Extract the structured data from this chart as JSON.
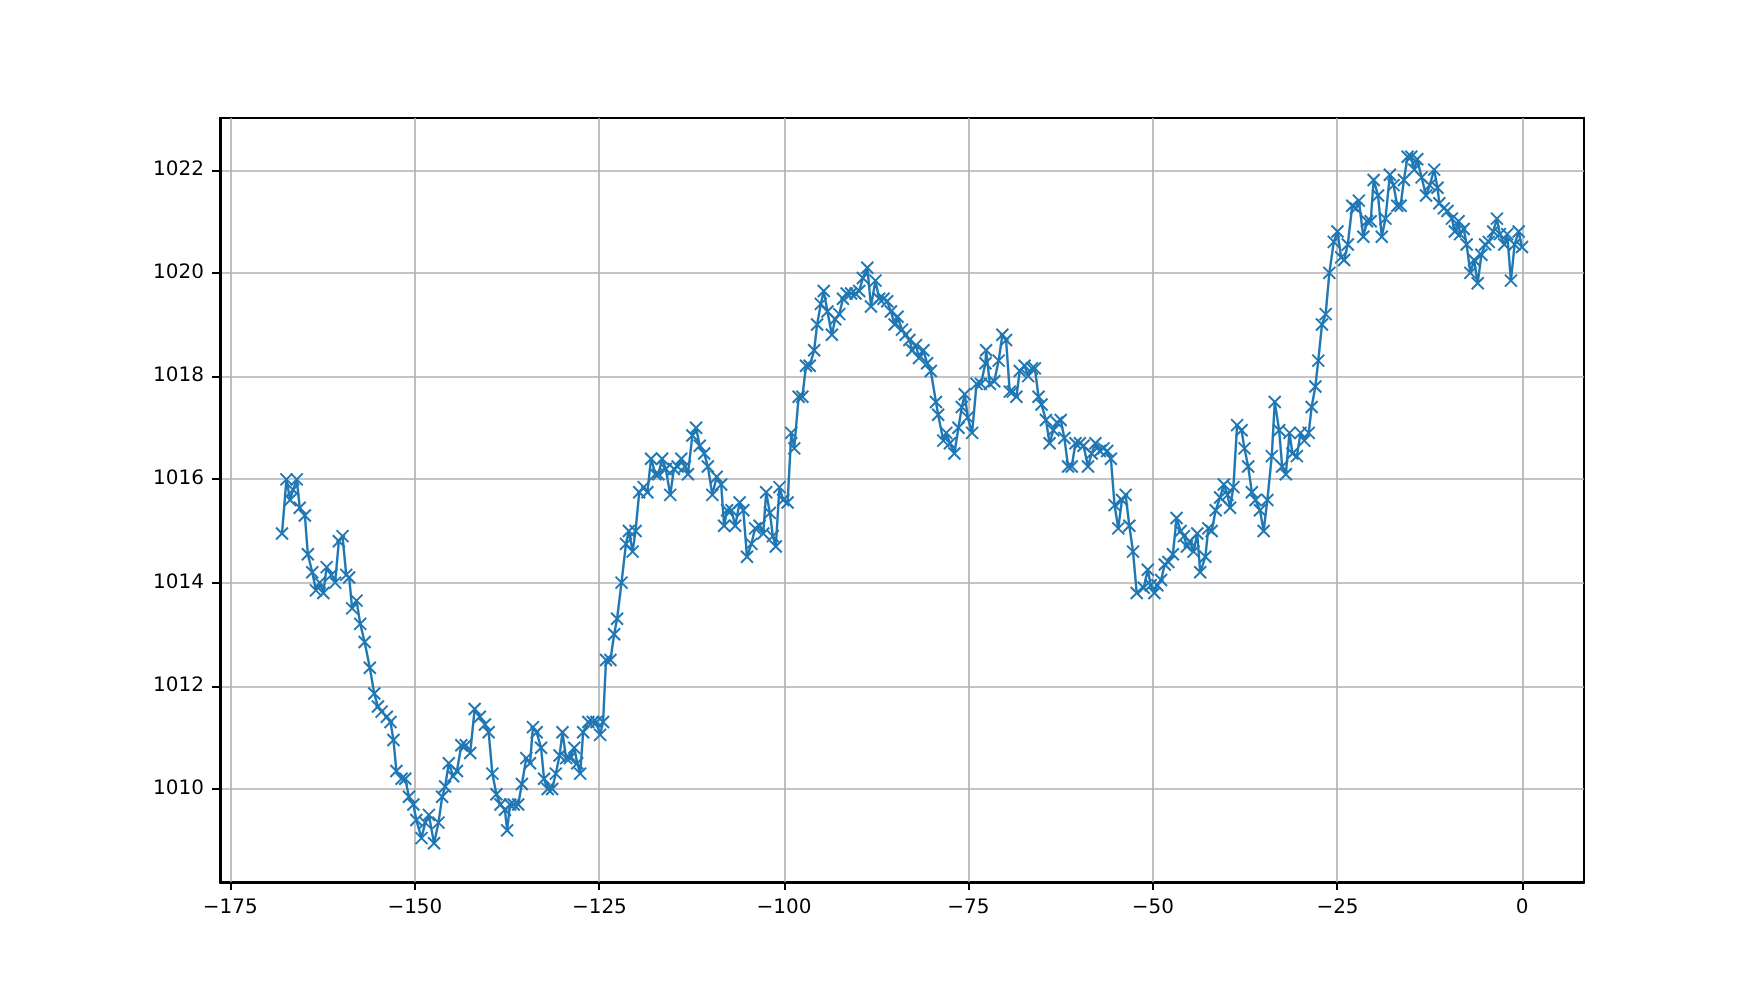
{
  "chart_data": {
    "type": "line",
    "grid": true,
    "marker": "cross",
    "line_style": "solid",
    "xlim": [
      -176.4,
      8.4
    ],
    "ylim": [
      1008.2,
      1023.0
    ],
    "xticks": [
      {
        "value": -175,
        "label": "−175"
      },
      {
        "value": -150,
        "label": "−150"
      },
      {
        "value": -125,
        "label": "−125"
      },
      {
        "value": -100,
        "label": "−100"
      },
      {
        "value": -75,
        "label": "−75"
      },
      {
        "value": -50,
        "label": "−50"
      },
      {
        "value": -25,
        "label": "−25"
      },
      0
    ],
    "yticks": [
      1010,
      1012,
      1014,
      1016,
      1018,
      1020,
      1022
    ],
    "series": [
      {
        "color": "#1f77b4",
        "x": [
          -168,
          -167.4,
          -166.9,
          -166.5,
          -166.0,
          -165.6,
          -164.9,
          -164.5,
          -163.9,
          -163.4,
          -162.9,
          -162.4,
          -161.95,
          -161.3,
          -160.8,
          -160.3,
          -159.8,
          -159.3,
          -158.9,
          -158.5,
          -157.9,
          -157.4,
          -156.8,
          -156.1,
          -155.5,
          -155.0,
          -154.5,
          -153.8,
          -153.3,
          -152.9,
          -152.5,
          -151.8,
          -151.3,
          -150.8,
          -150.2,
          -149.8,
          -149.1,
          -148.6,
          -148.1,
          -147.4,
          -146.8,
          -146.3,
          -145.9,
          -145.4,
          -144.8,
          -144.3,
          -143.7,
          -143.1,
          -142.5,
          -141.9,
          -141.2,
          -140.5,
          -140.0,
          -139.5,
          -138.95,
          -138.4,
          -137.8,
          -137.5,
          -137.1,
          -136.6,
          -136.0,
          -135.5,
          -134.9,
          -134.4,
          -134.0,
          -133.5,
          -132.9,
          -132.5,
          -132.0,
          -131.4,
          -130.9,
          -130.4,
          -130.0,
          -129.5,
          -129.0,
          -128.4,
          -128.0,
          -127.6,
          -127.2,
          -126.5,
          -125.9,
          -125.4,
          -124.9,
          -124.5,
          -124.1,
          -123.5,
          -123.0,
          -122.6,
          -122.0,
          -121.4,
          -121.0,
          -120.5,
          -120.1,
          -119.6,
          -119.0,
          -118.5,
          -118.0,
          -117.4,
          -117.0,
          -116.5,
          -116.0,
          -115.4,
          -114.9,
          -114.4,
          -113.9,
          -113.4,
          -113.0,
          -112.4,
          -111.9,
          -111.4,
          -110.8,
          -110.3,
          -109.7,
          -109.1,
          -108.5,
          -108.1,
          -107.7,
          -107.1,
          -106.6,
          -106.0,
          -105.5,
          -105.0,
          -104.4,
          -103.9,
          -103.3,
          -102.8,
          -102.4,
          -101.9,
          -101.5,
          -101.1,
          -100.6,
          -100.1,
          -99.5,
          -99.0,
          -98.6,
          -98.0,
          -97.5,
          -97.0,
          -96.5,
          -95.9,
          -95.5,
          -95.0,
          -94.6,
          -94.1,
          -93.5,
          -93.05,
          -92.5,
          -92.0,
          -91.5,
          -90.9,
          -90.3,
          -89.8,
          -89.3,
          -88.7,
          -88.2,
          -87.6,
          -87.1,
          -86.5,
          -86.0,
          -85.5,
          -85.0,
          -84.6,
          -84.0,
          -83.5,
          -83.0,
          -82.6,
          -82.1,
          -81.7,
          -81.1,
          -80.6,
          -80.1,
          -79.4,
          -79.1,
          -78.4,
          -78.0,
          -77.5,
          -76.9,
          -76.35,
          -75.9,
          -75.5,
          -75.1,
          -74.5,
          -73.9,
          -73.3,
          -72.7,
          -72.6,
          -72.1,
          -71.5,
          -70.9,
          -70.4,
          -69.9,
          -69.4,
          -69.0,
          -68.5,
          -68.05,
          -67.4,
          -66.9,
          -66.4,
          -66.0,
          -65.5,
          -65.1,
          -64.5,
          -64.0,
          -63.5,
          -63.0,
          -62.5,
          -62.0,
          -61.5,
          -61.0,
          -60.5,
          -59.9,
          -59.4,
          -58.8,
          -58.3,
          -57.8,
          -57.2,
          -56.7,
          -56.2,
          -55.7,
          -55.2,
          -54.7,
          -54.2,
          -53.7,
          -53.2,
          -52.7,
          -52.2,
          -51.25,
          -50.7,
          -50.3,
          -49.8,
          -49.4,
          -48.9,
          -48.4,
          -47.9,
          -47.3,
          -46.8,
          -46.25,
          -45.8,
          -45.4,
          -45.0,
          -44.5,
          -44.0,
          -43.6,
          -42.9,
          -42.5,
          -42.05,
          -41.5,
          -40.9,
          -40.4,
          -39.9,
          -39.55,
          -39.1,
          -38.6,
          -38.0,
          -37.6,
          -37.1,
          -36.6,
          -36.1,
          -35.5,
          -35.0,
          -34.5,
          -33.9,
          -33.5,
          -32.9,
          -32.5,
          -32.0,
          -31.5,
          -31.1,
          -30.5,
          -30.0,
          -29.5,
          -28.9,
          -28.5,
          -28.0,
          -27.6,
          -27.1,
          -26.6,
          -26.1,
          -25.5,
          -25.0,
          -24.5,
          -24.1,
          -23.6,
          -23.0,
          -22.5,
          -22.1,
          -21.5,
          -21.0,
          -20.5,
          -20.1,
          -19.5,
          -19.0,
          -18.5,
          -17.9,
          -17.4,
          -16.9,
          -16.45,
          -16.0,
          -15.5,
          -15.0,
          -14.6,
          -14.2,
          -13.6,
          -13.0,
          -12.5,
          -11.9,
          -11.45,
          -11.2,
          -10.6,
          -10.1,
          -9.5,
          -9.1,
          -8.6,
          -8.4,
          -7.9,
          -7.5,
          -7.0,
          -6.5,
          -6.0,
          -5.5,
          -5.0,
          -4.5,
          -3.9,
          -3.4,
          -3.0,
          -2.4,
          -2.0,
          -1.5,
          -1.0,
          -0.45,
          0
        ],
        "values": [
          1014.95,
          1016.0,
          1015.6,
          1015.8,
          1016.0,
          1015.45,
          1015.3,
          1014.55,
          1014.2,
          1013.85,
          1014.0,
          1013.8,
          1014.3,
          1014.15,
          1014.0,
          1014.8,
          1014.9,
          1014.15,
          1014.1,
          1013.5,
          1013.65,
          1013.2,
          1012.85,
          1012.35,
          1011.85,
          1011.6,
          1011.5,
          1011.4,
          1011.3,
          1010.95,
          1010.35,
          1010.2,
          1010.2,
          1009.85,
          1009.7,
          1009.4,
          1009.05,
          1009.35,
          1009.5,
          1008.95,
          1009.35,
          1009.85,
          1010.05,
          1010.5,
          1010.25,
          1010.35,
          1010.85,
          1010.85,
          1010.7,
          1011.55,
          1011.4,
          1011.25,
          1011.1,
          1010.3,
          1009.9,
          1009.7,
          1009.6,
          1009.2,
          1009.7,
          1009.7,
          1009.7,
          1010.1,
          1010.6,
          1010.5,
          1011.2,
          1011.1,
          1010.8,
          1010.2,
          1010.0,
          1010.0,
          1010.3,
          1010.65,
          1011.1,
          1010.6,
          1010.6,
          1010.8,
          1010.5,
          1010.3,
          1011.1,
          1011.3,
          1011.3,
          1011.3,
          1011.05,
          1011.3,
          1012.5,
          1012.5,
          1013.0,
          1013.3,
          1014.0,
          1014.75,
          1015.0,
          1014.6,
          1015.0,
          1015.75,
          1015.85,
          1015.75,
          1016.4,
          1016.1,
          1016.1,
          1016.4,
          1016.2,
          1015.7,
          1016.2,
          1016.25,
          1016.4,
          1016.25,
          1016.1,
          1016.85,
          1017.0,
          1016.65,
          1016.5,
          1016.25,
          1015.7,
          1016.05,
          1015.9,
          1015.1,
          1015.4,
          1015.4,
          1015.1,
          1015.55,
          1015.4,
          1014.5,
          1014.75,
          1015.05,
          1015.1,
          1014.95,
          1015.75,
          1015.35,
          1014.9,
          1014.7,
          1015.85,
          1015.6,
          1015.55,
          1016.9,
          1016.6,
          1017.6,
          1017.6,
          1018.2,
          1018.2,
          1018.5,
          1019.0,
          1019.4,
          1019.65,
          1019.25,
          1018.8,
          1019.1,
          1019.2,
          1019.5,
          1019.6,
          1019.6,
          1019.6,
          1019.65,
          1019.9,
          1020.1,
          1019.35,
          1019.85,
          1019.5,
          1019.5,
          1019.45,
          1019.25,
          1019.0,
          1019.15,
          1018.9,
          1018.8,
          1018.7,
          1018.5,
          1018.6,
          1018.35,
          1018.5,
          1018.25,
          1018.1,
          1017.5,
          1017.25,
          1016.75,
          1016.9,
          1016.7,
          1016.5,
          1017.0,
          1017.4,
          1017.65,
          1017.2,
          1016.9,
          1017.85,
          1017.85,
          1018.25,
          1018.5,
          1017.85,
          1017.9,
          1018.3,
          1018.8,
          1018.7,
          1017.7,
          1017.7,
          1017.6,
          1018.1,
          1018.2,
          1018.0,
          1018.15,
          1018.15,
          1017.6,
          1017.45,
          1017.15,
          1016.7,
          1016.95,
          1017.1,
          1017.15,
          1016.8,
          1016.25,
          1016.25,
          1016.7,
          1016.7,
          1016.65,
          1016.25,
          1016.5,
          1016.7,
          1016.55,
          1016.6,
          1016.55,
          1016.4,
          1015.5,
          1015.05,
          1015.6,
          1015.7,
          1015.1,
          1014.6,
          1013.8,
          1013.9,
          1014.25,
          1013.95,
          1013.8,
          1013.95,
          1014.05,
          1014.35,
          1014.4,
          1014.55,
          1015.25,
          1015.0,
          1014.9,
          1014.7,
          1014.8,
          1014.6,
          1014.95,
          1014.2,
          1014.5,
          1015.05,
          1015.0,
          1015.4,
          1015.65,
          1015.9,
          1015.7,
          1015.45,
          1015.85,
          1017.05,
          1016.95,
          1016.6,
          1016.25,
          1015.75,
          1015.6,
          1015.4,
          1015.0,
          1015.6,
          1016.45,
          1017.5,
          1016.95,
          1016.25,
          1016.1,
          1016.9,
          1016.5,
          1016.45,
          1016.9,
          1016.75,
          1016.9,
          1017.4,
          1017.8,
          1018.3,
          1019.0,
          1019.2,
          1020.0,
          1020.6,
          1020.8,
          1020.3,
          1020.25,
          1020.55,
          1021.3,
          1021.25,
          1021.4,
          1020.7,
          1021.0,
          1021.0,
          1021.8,
          1021.5,
          1020.7,
          1021.05,
          1021.9,
          1021.7,
          1021.3,
          1021.3,
          1021.8,
          1022.25,
          1022.25,
          1022.0,
          1022.2,
          1021.85,
          1021.5,
          1021.7,
          1022.0,
          1021.65,
          1021.35,
          1021.25,
          1021.2,
          1021.05,
          1020.8,
          1021.0,
          1020.75,
          1020.85,
          1020.55,
          1020.0,
          1020.25,
          1019.8,
          1020.35,
          1020.55,
          1020.6,
          1020.8,
          1021.05,
          1020.75,
          1020.55,
          1020.75,
          1019.85,
          1020.55,
          1020.8,
          1020.5
        ]
      }
    ]
  }
}
